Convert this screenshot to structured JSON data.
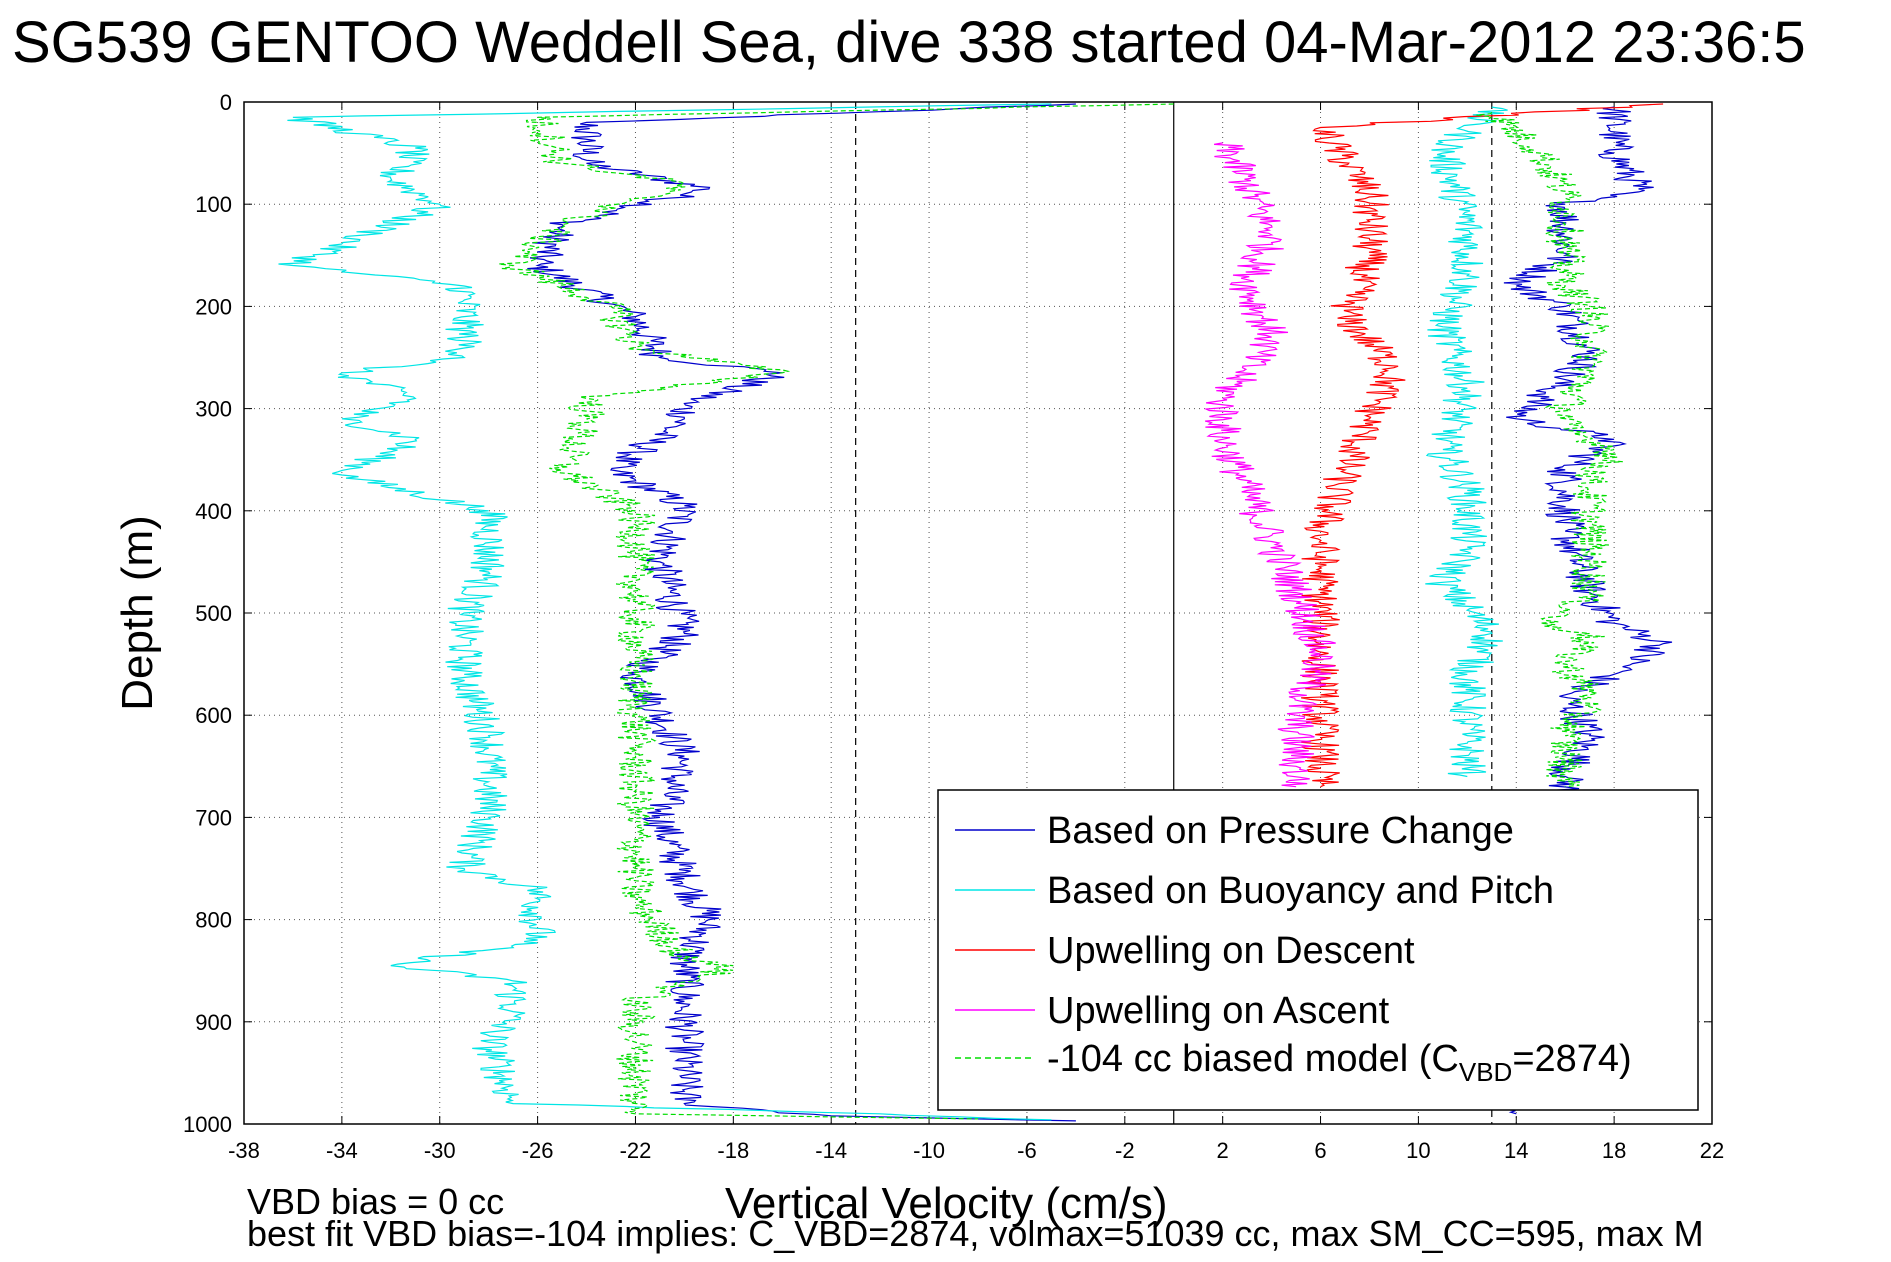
{
  "chart_data": {
    "type": "line",
    "title": "SG539 GENTOO Weddell Sea, dive 338 started 04-Mar-2012 23:36:5",
    "xlabel": "Vertical Velocity (cm/s)",
    "ylabel": "Depth (m)",
    "xlim": [
      -38,
      22
    ],
    "ylim": [
      0,
      1000
    ],
    "y_reversed": true,
    "grid": true,
    "x_ticks": [
      -38,
      -34,
      -30,
      -26,
      -22,
      -18,
      -14,
      -10,
      -6,
      -2,
      2,
      6,
      10,
      14,
      18,
      22
    ],
    "y_ticks": [
      0,
      100,
      200,
      300,
      400,
      500,
      600,
      700,
      800,
      900,
      1000
    ],
    "reference_lines": {
      "dashed_x": [
        -13,
        13
      ],
      "solid_x": [
        0
      ]
    },
    "legend_position": "bottom-right",
    "legend": [
      {
        "label": "Based on Pressure Change",
        "color": "#0000cc",
        "style": "solid"
      },
      {
        "label": "Based on Buoyancy and Pitch",
        "color": "#00e5e5",
        "style": "solid"
      },
      {
        "label": "Upwelling on Descent",
        "color": "#ff0000",
        "style": "solid"
      },
      {
        "label": "Upwelling on Ascent",
        "color": "#ff00ff",
        "style": "solid"
      },
      {
        "label": "-104 cc biased model (C",
        "sub": "VBD",
        "suffix": "=2874)",
        "color": "#00dd00",
        "style": "dashed"
      }
    ],
    "series": [
      {
        "name": "Based on Pressure Change",
        "color": "#0000cc",
        "segment": "descent",
        "points": [
          [
            -4,
            2
          ],
          [
            -24,
            20
          ],
          [
            -24,
            60
          ],
          [
            -19,
            85
          ],
          [
            -25,
            120
          ],
          [
            -26,
            160
          ],
          [
            -22,
            210
          ],
          [
            -21,
            250
          ],
          [
            -16,
            265
          ],
          [
            -20,
            295
          ],
          [
            -20,
            310
          ],
          [
            -23,
            360
          ],
          [
            -20,
            395
          ],
          [
            -21,
            450
          ],
          [
            -20,
            520
          ],
          [
            -22,
            560
          ],
          [
            -20,
            640
          ],
          [
            -21,
            700
          ],
          [
            -20,
            760
          ],
          [
            -19,
            800
          ],
          [
            -20,
            840
          ],
          [
            -20,
            880
          ],
          [
            -20,
            920
          ],
          [
            -20,
            980
          ],
          [
            -14,
            992
          ],
          [
            -4,
            997
          ]
        ]
      },
      {
        "name": "Based on Pressure Change",
        "color": "#0000cc",
        "segment": "ascent",
        "points": [
          [
            18,
            5
          ],
          [
            18,
            50
          ],
          [
            19,
            85
          ],
          [
            16,
            100
          ],
          [
            16,
            150
          ],
          [
            14,
            180
          ],
          [
            16,
            200
          ],
          [
            17,
            250
          ],
          [
            15,
            290
          ],
          [
            14,
            310
          ],
          [
            18,
            330
          ],
          [
            16,
            360
          ],
          [
            16,
            420
          ],
          [
            17,
            480
          ],
          [
            18,
            510
          ],
          [
            20,
            530
          ],
          [
            18,
            560
          ],
          [
            16,
            580
          ],
          [
            17,
            620
          ],
          [
            16,
            660
          ],
          [
            16,
            700
          ],
          [
            14,
            990
          ]
        ]
      },
      {
        "name": "Based on Buoyancy and Pitch",
        "color": "#00e5e5",
        "segment": "descent",
        "points": [
          [
            -5,
            2
          ],
          [
            -36,
            15
          ],
          [
            -31,
            45
          ],
          [
            -32,
            75
          ],
          [
            -30,
            100
          ],
          [
            -33,
            130
          ],
          [
            -36,
            160
          ],
          [
            -29,
            180
          ],
          [
            -29,
            230
          ],
          [
            -29,
            250
          ],
          [
            -34,
            265
          ],
          [
            -31,
            290
          ],
          [
            -34,
            310
          ],
          [
            -31,
            330
          ],
          [
            -34,
            365
          ],
          [
            -28,
            400
          ],
          [
            -28,
            460
          ],
          [
            -29,
            500
          ],
          [
            -29,
            560
          ],
          [
            -28,
            620
          ],
          [
            -28,
            700
          ],
          [
            -29,
            750
          ],
          [
            -26,
            770
          ],
          [
            -26,
            820
          ],
          [
            -32,
            845
          ],
          [
            -27,
            860
          ],
          [
            -27,
            890
          ],
          [
            -28,
            920
          ],
          [
            -27,
            980
          ],
          [
            -12,
            990
          ],
          [
            -5,
            996
          ]
        ]
      },
      {
        "name": "Based on Buoyancy and Pitch",
        "color": "#00e5e5",
        "segment": "ascent",
        "points": [
          [
            13,
            5
          ],
          [
            11,
            50
          ],
          [
            12,
            120
          ],
          [
            12,
            170
          ],
          [
            11,
            220
          ],
          [
            12,
            280
          ],
          [
            11,
            340
          ],
          [
            12,
            380
          ],
          [
            12,
            440
          ],
          [
            11,
            470
          ],
          [
            13,
            520
          ],
          [
            12,
            560
          ],
          [
            12,
            620
          ],
          [
            12,
            660
          ]
        ]
      },
      {
        "name": "Upwelling on Descent",
        "color": "#ff0000",
        "segment": "descent",
        "points": [
          [
            20,
            2
          ],
          [
            6,
            25
          ],
          [
            8,
            90
          ],
          [
            8,
            150
          ],
          [
            7,
            210
          ],
          [
            9,
            260
          ],
          [
            8,
            310
          ],
          [
            7,
            360
          ],
          [
            6,
            420
          ],
          [
            6,
            480
          ],
          [
            6,
            520
          ],
          [
            6,
            580
          ],
          [
            6,
            640
          ],
          [
            6,
            670
          ]
        ]
      },
      {
        "name": "Upwelling on Ascent",
        "color": "#ff00ff",
        "segment": "ascent",
        "points": [
          [
            2,
            40
          ],
          [
            3,
            80
          ],
          [
            4,
            130
          ],
          [
            3,
            180
          ],
          [
            4,
            230
          ],
          [
            2,
            290
          ],
          [
            2,
            330
          ],
          [
            3,
            380
          ],
          [
            4,
            430
          ],
          [
            5,
            480
          ],
          [
            6,
            540
          ],
          [
            5,
            600
          ],
          [
            5,
            650
          ],
          [
            5,
            670
          ]
        ]
      },
      {
        "name": "-104 cc biased model (CVBD=2874)",
        "color": "#00dd00",
        "segment": "descent",
        "points": [
          [
            0,
            2
          ],
          [
            -26,
            15
          ],
          [
            -25,
            60
          ],
          [
            -20,
            80
          ],
          [
            -25,
            120
          ],
          [
            -27,
            160
          ],
          [
            -23,
            200
          ],
          [
            -22,
            240
          ],
          [
            -16,
            265
          ],
          [
            -24,
            290
          ],
          [
            -24,
            310
          ],
          [
            -25,
            360
          ],
          [
            -22,
            400
          ],
          [
            -22,
            500
          ],
          [
            -22,
            560
          ],
          [
            -22,
            640
          ],
          [
            -22,
            750
          ],
          [
            -22,
            780
          ],
          [
            -20,
            840
          ],
          [
            -18,
            845
          ],
          [
            -22,
            880
          ],
          [
            -22,
            920
          ],
          [
            -22,
            990
          ],
          [
            -8,
            995
          ]
        ]
      },
      {
        "name": "-104 cc biased model (CVBD=2874)",
        "color": "#00dd00",
        "segment": "ascent",
        "points": [
          [
            13,
            10
          ],
          [
            15,
            50
          ],
          [
            16,
            90
          ],
          [
            16,
            120
          ],
          [
            16,
            150
          ],
          [
            16,
            180
          ],
          [
            17,
            200
          ],
          [
            17,
            260
          ],
          [
            16,
            300
          ],
          [
            16,
            320
          ],
          [
            18,
            340
          ],
          [
            17,
            370
          ],
          [
            17,
            420
          ],
          [
            17,
            480
          ],
          [
            16,
            500
          ],
          [
            15,
            510
          ],
          [
            17,
            520
          ],
          [
            16,
            550
          ],
          [
            17,
            580
          ],
          [
            16,
            620
          ],
          [
            16,
            670
          ]
        ]
      }
    ]
  },
  "footer": {
    "line1": "VBD bias = 0 cc",
    "line2": "best fit VBD bias=-104 implies: C_VBD=2874, volmax=51039 cc, max SM_CC=595, max M"
  }
}
